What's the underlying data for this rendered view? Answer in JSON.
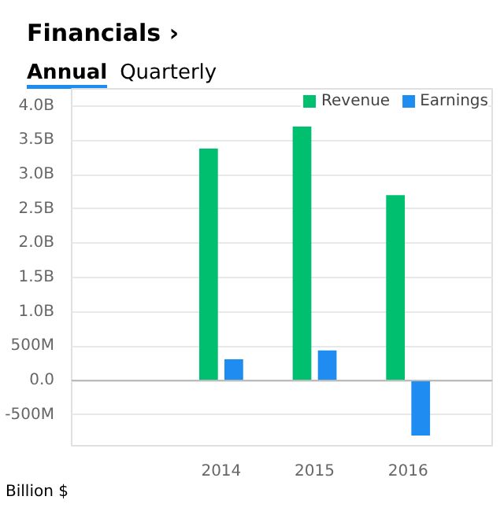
{
  "chart_data": {
    "type": "bar",
    "title": "Financials ›",
    "annotations": [
      "Annual",
      "Quarterly",
      "Billion $"
    ],
    "categories": [
      "2014",
      "2015",
      "2016"
    ],
    "series": [
      {
        "name": "Revenue",
        "color": "#00bf6f",
        "values": [
          3380000000,
          3700000000,
          2700000000
        ]
      },
      {
        "name": "Earnings",
        "color": "#1e8cf0",
        "values": [
          310000000,
          440000000,
          -800000000
        ]
      }
    ],
    "ylim": [
      -950000000,
      4250000000
    ],
    "yticks": [
      {
        "value": -500000000,
        "label": "-500M"
      },
      {
        "value": 0,
        "label": "0.0"
      },
      {
        "value": 500000000,
        "label": "500M"
      },
      {
        "value": 1000000000,
        "label": "1.0B"
      },
      {
        "value": 1500000000,
        "label": "1.5B"
      },
      {
        "value": 2000000000,
        "label": "2.0B"
      },
      {
        "value": 2500000000,
        "label": "2.5B"
      },
      {
        "value": 3000000000,
        "label": "3.0B"
      },
      {
        "value": 3500000000,
        "label": "3.5B"
      },
      {
        "value": 4000000000,
        "label": "4.0B"
      }
    ],
    "grid": "y",
    "legend": "top right"
  }
}
